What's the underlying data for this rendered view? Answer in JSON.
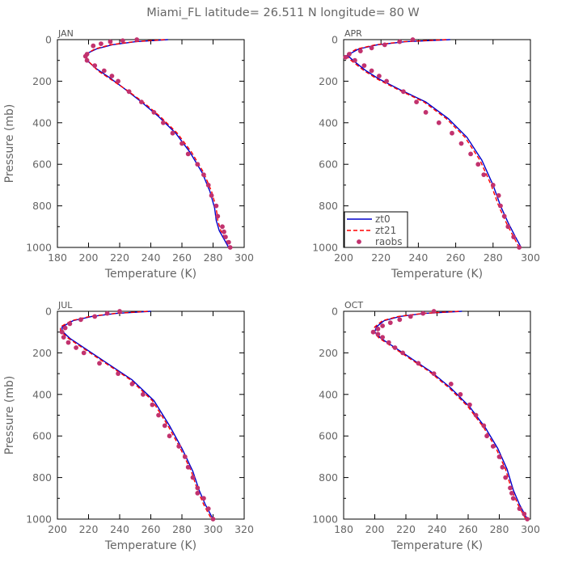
{
  "title": "Miami_FL   latitude= 26.511 N longitude= 80 W",
  "chart_data": [
    {
      "type": "line",
      "panel": "JAN",
      "xlabel": "Temperature (K)",
      "ylabel": "Pressure (mb)",
      "xlim": [
        180,
        300
      ],
      "ylim": [
        1000,
        0
      ],
      "xticks": [
        180,
        200,
        220,
        240,
        260,
        280,
        300
      ],
      "yticks": [
        0,
        200,
        400,
        600,
        800,
        1000
      ],
      "series": [
        {
          "name": "zt0",
          "style": "solid",
          "color": "#0000cc",
          "points": [
            [
              251,
              0
            ],
            [
              230,
              10
            ],
            [
              215,
              25
            ],
            [
              205,
              45
            ],
            [
              198,
              70
            ],
            [
              199,
              100
            ],
            [
              205,
              140
            ],
            [
              213,
              180
            ],
            [
              222,
              230
            ],
            [
              234,
              300
            ],
            [
              245,
              370
            ],
            [
              256,
              450
            ],
            [
              265,
              540
            ],
            [
              273,
              640
            ],
            [
              278,
              730
            ],
            [
              281,
              810
            ],
            [
              282,
              870
            ],
            [
              284,
              920
            ],
            [
              287,
              960
            ],
            [
              290,
              1000
            ]
          ]
        },
        {
          "name": "zt21",
          "style": "dashed",
          "color": "#ff0000",
          "points": [
            [
              249,
              0
            ],
            [
              229,
              10
            ],
            [
              214,
              25
            ],
            [
              204,
              45
            ],
            [
              198,
              72
            ],
            [
              200,
              105
            ],
            [
              206,
              150
            ],
            [
              215,
              195
            ],
            [
              224,
              240
            ],
            [
              235,
              300
            ],
            [
              246,
              370
            ],
            [
              257,
              450
            ],
            [
              266,
              540
            ],
            [
              274,
              640
            ],
            [
              279,
              730
            ],
            [
              282,
              810
            ],
            [
              283,
              870
            ],
            [
              285,
              920
            ],
            [
              288,
              960
            ],
            [
              291,
              1000
            ]
          ]
        }
      ],
      "raobs": [
        [
          199,
          70
        ],
        [
          198,
          80
        ],
        [
          199,
          100
        ],
        [
          204,
          125
        ],
        [
          210,
          150
        ],
        [
          215,
          175
        ],
        [
          219,
          200
        ],
        [
          226,
          250
        ],
        [
          234,
          300
        ],
        [
          242,
          350
        ],
        [
          248,
          400
        ],
        [
          254,
          450
        ],
        [
          260,
          500
        ],
        [
          264,
          550
        ],
        [
          270,
          600
        ],
        [
          274,
          650
        ],
        [
          277,
          700
        ],
        [
          279,
          750
        ],
        [
          282,
          800
        ],
        [
          283,
          850
        ],
        [
          286,
          900
        ],
        [
          287,
          925
        ],
        [
          288,
          950
        ],
        [
          290,
          975
        ],
        [
          291,
          1000
        ],
        [
          203,
          30
        ],
        [
          208,
          20
        ],
        [
          214,
          10
        ],
        [
          222,
          5
        ],
        [
          231,
          0
        ]
      ]
    },
    {
      "type": "line",
      "panel": "APR",
      "xlabel": "Temperature (K)",
      "ylabel": "",
      "xlim": [
        200,
        300
      ],
      "ylim": [
        1000,
        0
      ],
      "xticks": [
        200,
        220,
        240,
        260,
        280,
        300
      ],
      "yticks": [
        0,
        200,
        400,
        600,
        800,
        1000
      ],
      "legend": {
        "position": "bottom-left",
        "entries": [
          "zt0",
          "zt21",
          "raobs"
        ]
      },
      "series": [
        {
          "name": "zt0",
          "style": "solid",
          "color": "#0000cc",
          "points": [
            [
              257,
              0
            ],
            [
              233,
              10
            ],
            [
              218,
              25
            ],
            [
              208,
              45
            ],
            [
              202,
              75
            ],
            [
              205,
              100
            ],
            [
              212,
              150
            ],
            [
              219,
              190
            ],
            [
              230,
              240
            ],
            [
              244,
              300
            ],
            [
              256,
              380
            ],
            [
              266,
              470
            ],
            [
              274,
              580
            ],
            [
              280,
              700
            ],
            [
              284,
              800
            ],
            [
              288,
              880
            ],
            [
              292,
              950
            ],
            [
              295,
              1000
            ]
          ]
        },
        {
          "name": "zt21",
          "style": "dashed",
          "color": "#ff0000",
          "points": [
            [
              255,
              0
            ],
            [
              232,
              10
            ],
            [
              217,
              25
            ],
            [
              207,
              45
            ],
            [
              201,
              75
            ],
            [
              204,
              100
            ],
            [
              211,
              150
            ],
            [
              218,
              190
            ],
            [
              229,
              240
            ],
            [
              243,
              300
            ],
            [
              255,
              380
            ],
            [
              265,
              470
            ],
            [
              273,
              580
            ],
            [
              279,
              700
            ],
            [
              283,
              800
            ],
            [
              287,
              880
            ],
            [
              291,
              950
            ],
            [
              294,
              1000
            ]
          ]
        }
      ],
      "raobs": [
        [
          237,
          0
        ],
        [
          230,
          10
        ],
        [
          222,
          25
        ],
        [
          215,
          40
        ],
        [
          209,
          55
        ],
        [
          203,
          70
        ],
        [
          201,
          85
        ],
        [
          206,
          100
        ],
        [
          211,
          125
        ],
        [
          215,
          150
        ],
        [
          219,
          175
        ],
        [
          223,
          200
        ],
        [
          232,
          250
        ],
        [
          239,
          300
        ],
        [
          244,
          350
        ],
        [
          251,
          400
        ],
        [
          258,
          450
        ],
        [
          263,
          500
        ],
        [
          268,
          550
        ],
        [
          272,
          600
        ],
        [
          275,
          650
        ],
        [
          280,
          700
        ],
        [
          283,
          750
        ],
        [
          284,
          800
        ],
        [
          286,
          850
        ],
        [
          288,
          900
        ],
        [
          291,
          950
        ],
        [
          294,
          1000
        ]
      ]
    },
    {
      "type": "line",
      "panel": "JUL",
      "xlabel": "Temperature (K)",
      "ylabel": "Pressure (mb)",
      "xlim": [
        200,
        320
      ],
      "ylim": [
        1000,
        0
      ],
      "xticks": [
        200,
        220,
        240,
        260,
        280,
        300,
        320
      ],
      "yticks": [
        0,
        200,
        400,
        600,
        800,
        1000
      ],
      "series": [
        {
          "name": "zt0",
          "style": "solid",
          "color": "#0000cc",
          "points": [
            [
              260,
              0
            ],
            [
              238,
              10
            ],
            [
              222,
              25
            ],
            [
              210,
              45
            ],
            [
              203,
              75
            ],
            [
              203,
              95
            ],
            [
              208,
              130
            ],
            [
              218,
              180
            ],
            [
              232,
              250
            ],
            [
              248,
              330
            ],
            [
              262,
              430
            ],
            [
              272,
              550
            ],
            [
              280,
              660
            ],
            [
              287,
              770
            ],
            [
              291,
              860
            ],
            [
              295,
              930
            ],
            [
              300,
              1000
            ]
          ]
        },
        {
          "name": "zt21",
          "style": "dashed",
          "color": "#ff0000",
          "points": [
            [
              258,
              0
            ],
            [
              237,
              10
            ],
            [
              221,
              25
            ],
            [
              209,
              45
            ],
            [
              202,
              75
            ],
            [
              202,
              95
            ],
            [
              207,
              130
            ],
            [
              217,
              180
            ],
            [
              231,
              250
            ],
            [
              247,
              330
            ],
            [
              261,
              430
            ],
            [
              271,
              550
            ],
            [
              279,
              660
            ],
            [
              286,
              770
            ],
            [
              290,
              860
            ],
            [
              294,
              930
            ],
            [
              299,
              1000
            ]
          ]
        }
      ],
      "raobs": [
        [
          240,
          0
        ],
        [
          232,
          10
        ],
        [
          224,
          25
        ],
        [
          215,
          40
        ],
        [
          208,
          60
        ],
        [
          205,
          80
        ],
        [
          203,
          100
        ],
        [
          204,
          125
        ],
        [
          207,
          150
        ],
        [
          212,
          175
        ],
        [
          217,
          200
        ],
        [
          227,
          250
        ],
        [
          239,
          300
        ],
        [
          248,
          350
        ],
        [
          255,
          400
        ],
        [
          261,
          450
        ],
        [
          265,
          500
        ],
        [
          269,
          550
        ],
        [
          272,
          600
        ],
        [
          278,
          650
        ],
        [
          282,
          700
        ],
        [
          284,
          750
        ],
        [
          287,
          800
        ],
        [
          290,
          850
        ],
        [
          290,
          875
        ],
        [
          294,
          900
        ],
        [
          297,
          950
        ],
        [
          300,
          1000
        ]
      ]
    },
    {
      "type": "line",
      "panel": "OCT",
      "xlabel": "Temperature (K)",
      "ylabel": "",
      "xlim": [
        180,
        300
      ],
      "ylim": [
        1000,
        0
      ],
      "xticks": [
        180,
        200,
        220,
        240,
        260,
        280,
        300
      ],
      "yticks": [
        0,
        200,
        400,
        600,
        800,
        1000
      ],
      "series": [
        {
          "name": "zt0",
          "style": "solid",
          "color": "#0000cc",
          "points": [
            [
              256,
              0
            ],
            [
              232,
              10
            ],
            [
              216,
              25
            ],
            [
              206,
              45
            ],
            [
              201,
              75
            ],
            [
              200,
              100
            ],
            [
              204,
              130
            ],
            [
              212,
              170
            ],
            [
              222,
              220
            ],
            [
              236,
              290
            ],
            [
              249,
              370
            ],
            [
              261,
              460
            ],
            [
              271,
              560
            ],
            [
              279,
              660
            ],
            [
              285,
              760
            ],
            [
              289,
              860
            ],
            [
              293,
              930
            ],
            [
              298,
              1000
            ]
          ]
        },
        {
          "name": "zt21",
          "style": "dashed",
          "color": "#ff0000",
          "points": [
            [
              254,
              0
            ],
            [
              231,
              10
            ],
            [
              215,
              25
            ],
            [
              205,
              45
            ],
            [
              200,
              75
            ],
            [
              199,
              100
            ],
            [
              203,
              130
            ],
            [
              211,
              170
            ],
            [
              221,
              220
            ],
            [
              235,
              290
            ],
            [
              248,
              370
            ],
            [
              260,
              460
            ],
            [
              270,
              560
            ],
            [
              278,
              660
            ],
            [
              284,
              760
            ],
            [
              288,
              860
            ],
            [
              292,
              930
            ],
            [
              297,
              1000
            ]
          ]
        }
      ],
      "raobs": [
        [
          238,
          0
        ],
        [
          231,
          10
        ],
        [
          223,
          25
        ],
        [
          216,
          40
        ],
        [
          210,
          55
        ],
        [
          205,
          70
        ],
        [
          202,
          85
        ],
        [
          199,
          100
        ],
        [
          202,
          110
        ],
        [
          205,
          125
        ],
        [
          209,
          150
        ],
        [
          213,
          175
        ],
        [
          218,
          200
        ],
        [
          228,
          250
        ],
        [
          238,
          300
        ],
        [
          249,
          350
        ],
        [
          255,
          400
        ],
        [
          261,
          450
        ],
        [
          265,
          500
        ],
        [
          270,
          550
        ],
        [
          272,
          600
        ],
        [
          276,
          650
        ],
        [
          280,
          700
        ],
        [
          282,
          750
        ],
        [
          284,
          800
        ],
        [
          287,
          850
        ],
        [
          288,
          875
        ],
        [
          289,
          900
        ],
        [
          293,
          950
        ],
        [
          296,
          975
        ],
        [
          298,
          1000
        ]
      ]
    }
  ]
}
